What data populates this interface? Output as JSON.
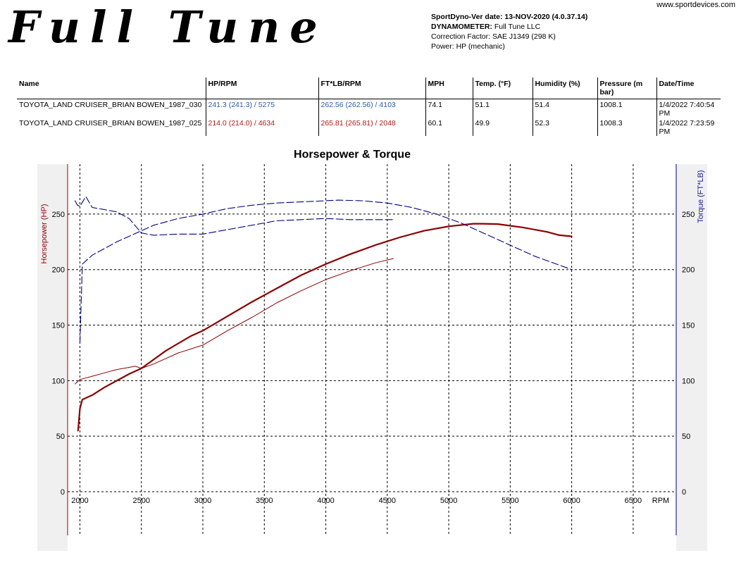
{
  "logo_text": "Full Tune",
  "site": "www.sportdevices.com",
  "header": {
    "version_label": "SportDyno-Ver date: 13-NOV-2020 (4.0.37.14)",
    "dyno_label": "DYNAMOMETER:",
    "dyno_value": "Full Tune LLC",
    "correction": "Correction Factor: SAE J1349 (298 K)",
    "power": "Power: HP (mechanic)"
  },
  "table": {
    "headers": [
      "Name",
      "HP/RPM",
      "FT*LB/RPM",
      "MPH",
      "Temp. (°F)",
      "Humidity (%)",
      "Pressure (m bar)",
      "Date/Time"
    ],
    "rows": [
      [
        "TOYOTA_LAND CRUISER_BRIAN BOWEN_1987_030",
        "241.3 (241.3) / 5275",
        "262.56 (262.56) / 4103",
        "74.1",
        "51.1",
        "51.4",
        "1008.1",
        "1/4/2022 7:40:54 PM"
      ],
      [
        "TOYOTA_LAND CRUISER_BRIAN BOWEN_1987_025",
        "214.0 (214.0) / 4634",
        "265.81 (265.81) / 2048",
        "60.1",
        "49.9",
        "52.3",
        "1008.3",
        "1/4/2022 7:23:59 PM"
      ]
    ]
  },
  "colors": {
    "hp": "#8b0000",
    "torque": "#000080",
    "run1_text": "#2860a8",
    "run2_text": "#b01818"
  },
  "chart_data": {
    "type": "line",
    "title": "Horsepower & Torque",
    "xlabel": "RPM",
    "ylabel_left": "Horsepower (HP)",
    "ylabel_right": "Torque (FT*LB)",
    "xlim": [
      1900,
      6850
    ],
    "ylim": [
      0,
      295
    ],
    "xticks": [
      2000,
      2500,
      3000,
      3500,
      4000,
      4500,
      5000,
      5500,
      6000,
      6500
    ],
    "yticks": [
      0,
      50,
      100,
      150,
      200,
      250
    ],
    "grid": true,
    "series": [
      {
        "axis": "left",
        "quantity": "HP",
        "run": 1,
        "style": "thick",
        "x": [
          1985,
          2000,
          2020,
          2100,
          2200,
          2300,
          2400,
          2500,
          2700,
          2900,
          3000,
          3200,
          3400,
          3600,
          3800,
          4000,
          4200,
          4400,
          4600,
          4800,
          5000,
          5200,
          5275,
          5400,
          5600,
          5800,
          5900,
          6000
        ],
        "y": [
          55,
          75,
          83,
          87,
          94,
          100,
          106,
          111,
          127,
          140,
          145,
          158,
          171,
          183,
          195,
          205,
          214,
          222,
          229,
          235,
          239,
          241.3,
          241.3,
          241,
          238,
          234,
          231,
          230
        ]
      },
      {
        "axis": "left",
        "quantity": "HP",
        "run": 2,
        "style": "thin",
        "x": [
          1960,
          2000,
          2100,
          2200,
          2300,
          2400,
          2450,
          2500,
          2600,
          2800,
          3000,
          3200,
          3400,
          3600,
          3800,
          4000,
          4200,
          4400,
          4550
        ],
        "y": [
          97,
          101,
          104,
          107,
          110,
          112,
          113,
          111,
          115,
          125,
          132,
          145,
          157,
          170,
          181,
          191,
          199,
          206,
          210
        ]
      },
      {
        "axis": "right",
        "quantity": "Torque",
        "run": 1,
        "style": "dashed",
        "x": [
          2000,
          2020,
          2100,
          2200,
          2300,
          2400,
          2500,
          2600,
          2800,
          3000,
          3200,
          3400,
          3600,
          3800,
          4000,
          4103,
          4300,
          4500,
          4700,
          4900,
          5100,
          5300,
          5500,
          5700,
          5900,
          6000
        ],
        "y": [
          134,
          205,
          213,
          219,
          225,
          230,
          235,
          240,
          246,
          250,
          255,
          258,
          260,
          261,
          262,
          262.56,
          262,
          260,
          256,
          250,
          242,
          232,
          222,
          212,
          204,
          200
        ]
      },
      {
        "axis": "right",
        "quantity": "Torque",
        "run": 2,
        "style": "dashed",
        "x": [
          1960,
          1980,
          2000,
          2048,
          2100,
          2200,
          2300,
          2400,
          2500,
          2600,
          2800,
          3000,
          3200,
          3400,
          3600,
          3800,
          4000,
          4200,
          4400,
          4550
        ],
        "y": [
          262,
          258,
          257,
          265.81,
          256,
          254,
          252,
          246,
          233,
          231,
          232,
          232,
          236,
          240,
          244,
          245,
          246,
          245,
          245,
          245
        ]
      }
    ]
  }
}
